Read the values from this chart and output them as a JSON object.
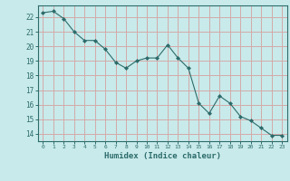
{
  "x": [
    0,
    1,
    2,
    3,
    4,
    5,
    6,
    7,
    8,
    9,
    10,
    11,
    12,
    13,
    14,
    15,
    16,
    17,
    18,
    19,
    20,
    21,
    22,
    23
  ],
  "y": [
    22.3,
    22.4,
    21.9,
    21.0,
    20.4,
    20.4,
    19.8,
    18.9,
    18.5,
    19.0,
    19.2,
    19.2,
    20.1,
    19.2,
    18.5,
    16.1,
    15.4,
    16.6,
    16.1,
    15.2,
    14.9,
    14.4,
    13.9,
    13.9
  ],
  "line_color": "#2d6b6b",
  "marker": "D",
  "marker_size": 2.0,
  "bg_color": "#c8eaea",
  "grid_color": "#d4aaaa",
  "ylabel_ticks": [
    14,
    15,
    16,
    17,
    18,
    19,
    20,
    21,
    22
  ],
  "xlabel": "Humidex (Indice chaleur)",
  "ylim": [
    13.5,
    22.8
  ],
  "xlim": [
    -0.5,
    23.5
  ],
  "tick_color": "#2d6b6b",
  "label_color": "#2d6b6b"
}
